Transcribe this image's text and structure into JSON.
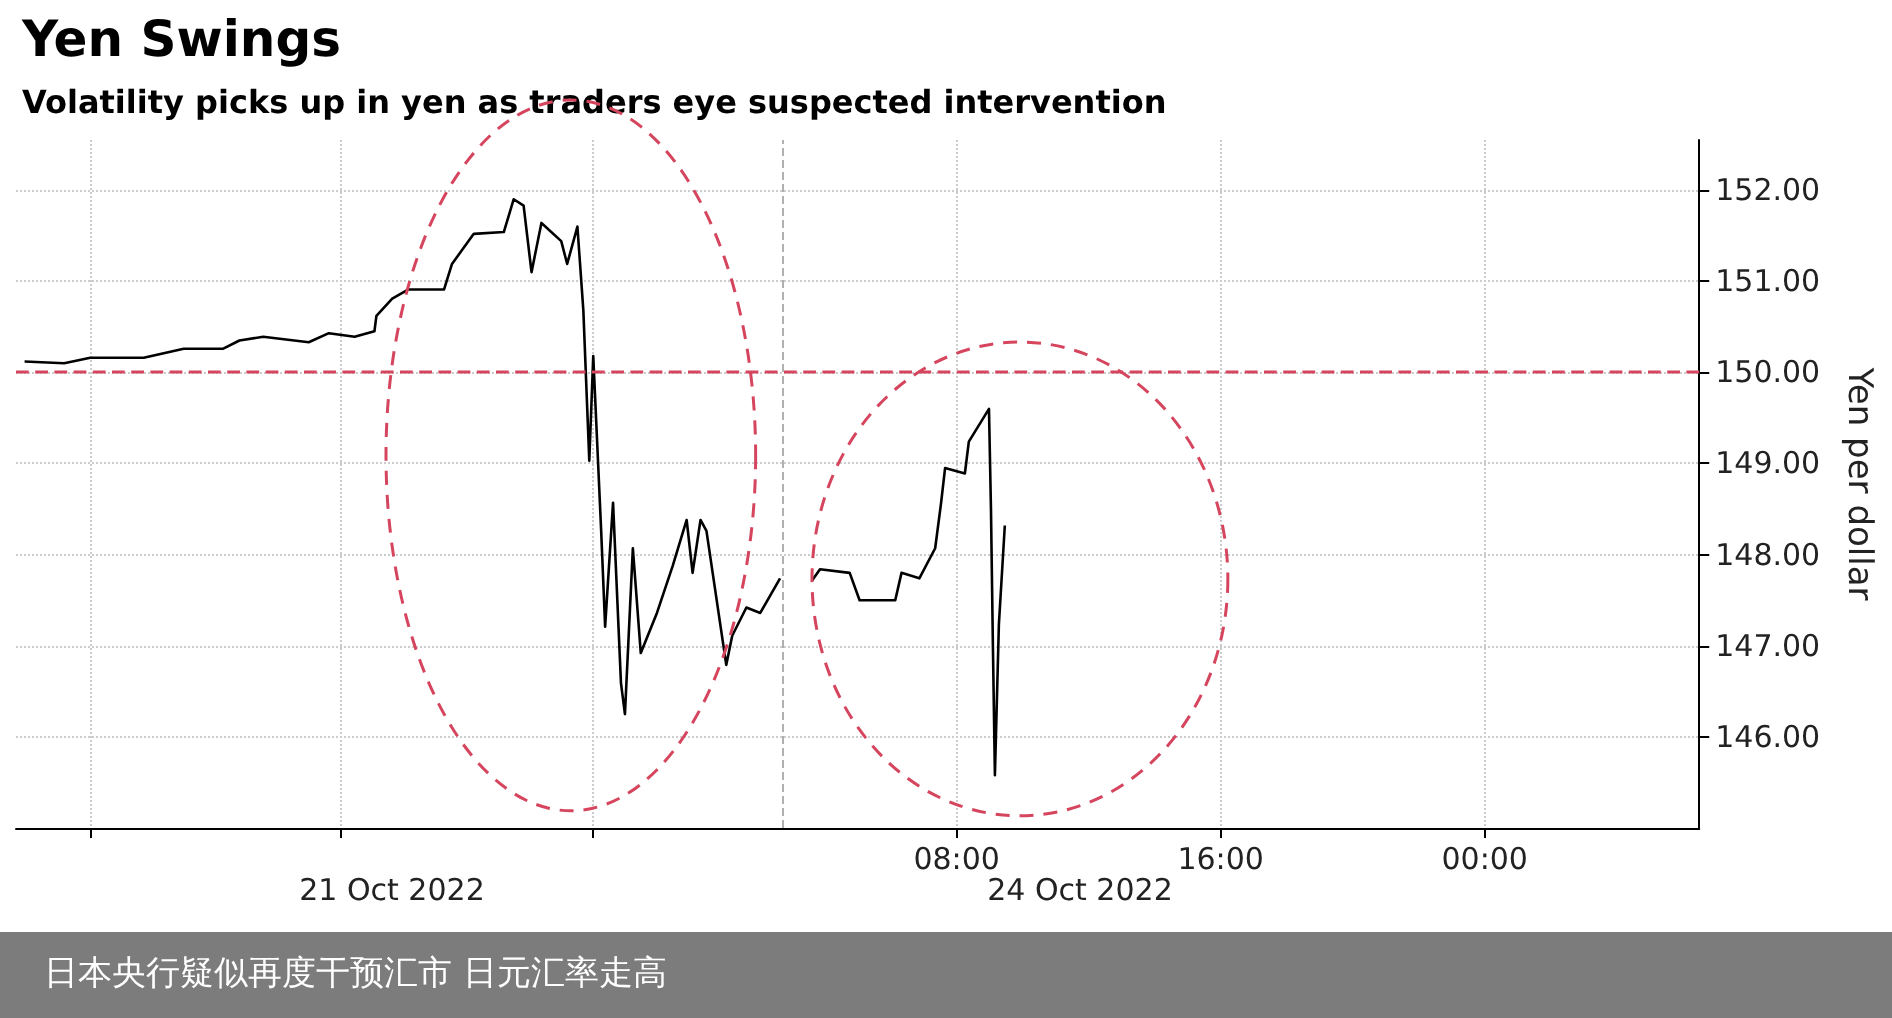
{
  "chart_data": {
    "type": "line",
    "title": "Yen Swings",
    "subtitle": "Volatility picks up in yen as traders eye suspected intervention",
    "ylabel": "Yen per dollar",
    "x": [
      -20.24,
      -19.04,
      -18.25,
      -16.63,
      -15.42,
      -14.22,
      -13.73,
      -13.01,
      -11.63,
      -11.02,
      -10.24,
      -9.64,
      -9.58,
      -9.1,
      -8.61,
      -7.53,
      -7.29,
      -6.63,
      -5.72,
      -5.42,
      -5.12,
      -4.88,
      -4.58,
      -3.98,
      -3.8,
      -3.49,
      -3.31,
      -3.13,
      -3.01,
      -2.77,
      -2.65,
      -2.41,
      -2.17,
      -2.05,
      -1.81,
      -1.57,
      -1.08,
      -0.6,
      -0.18,
      0,
      0.24,
      0.42,
      1.02,
      1.2,
      1.63,
      2.05,
      2.65,
      3.1,
      3.61,
      3.86,
      4.76,
      5.06,
      6.14,
      6.33,
      6.87,
      7.35,
      7.53,
      7.65,
      8.25,
      8.37,
      8.98,
      9.04,
      9.1,
      9.16,
      9.28,
      9.46
    ],
    "series": [
      {
        "color": "#000000",
        "values": [
          150.12,
          150.1,
          150.16,
          150.16,
          150.26,
          150.26,
          150.35,
          150.39,
          150.33,
          150.43,
          150.39,
          150.45,
          150.62,
          150.81,
          150.91,
          150.91,
          151.19,
          151.52,
          151.54,
          151.9,
          151.83,
          151.1,
          151.64,
          151.44,
          151.19,
          151.6,
          150.68,
          149.03,
          150.18,
          148.26,
          147.21,
          148.57,
          146.59,
          146.25,
          148.07,
          146.92,
          147.36,
          147.88,
          148.38,
          147.8,
          148.38,
          148.26,
          146.79,
          147.11,
          147.42,
          147.36,
          147.74,
          null,
          147.71,
          147.84,
          147.8,
          147.5,
          147.5,
          147.8,
          147.74,
          148.07,
          148.57,
          148.95,
          148.89,
          149.24,
          149.6,
          148.51,
          146.98,
          145.58,
          147.23,
          148.32
        ]
      }
    ],
    "xlim": [
      -20.5,
      30.5
    ],
    "xticks": [
      {
        "value": -18.25,
        "label": null
      },
      {
        "value": -10.66,
        "label": null
      },
      {
        "value": -3.01,
        "label": null
      },
      {
        "value": 8,
        "label": "08:00"
      },
      {
        "value": 16,
        "label": "16:00"
      },
      {
        "value": 24,
        "label": "00:00"
      }
    ],
    "ylim": [
      145,
      152.55
    ],
    "yticks": [
      {
        "value": 146,
        "label": "146.00"
      },
      {
        "value": 147,
        "label": "147.00"
      },
      {
        "value": 148,
        "label": "148.00"
      },
      {
        "value": 149,
        "label": "149.00"
      },
      {
        "value": 150,
        "label": "150.00"
      },
      {
        "value": 151,
        "label": "151.00"
      },
      {
        "value": 152,
        "label": "152.00"
      }
    ],
    "ref_lines": [
      {
        "axis": "y",
        "value": 150,
        "label": null,
        "color": "#d6455e",
        "line_style": "dashed"
      },
      {
        "axis": "x",
        "value": 2.7,
        "label": null,
        "color": "#b0b0b0",
        "line_style": "dashed"
      }
    ],
    "grid": true,
    "line_style": "solid",
    "marker": "none",
    "annotations": [
      "21 Oct 2022",
      "24 Oct 2022",
      "日本央行疑似再度干预汇市  日元汇率走高"
    ]
  }
}
